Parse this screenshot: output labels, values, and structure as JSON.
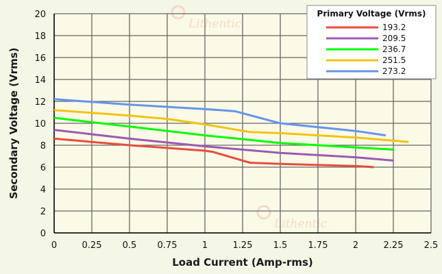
{
  "chart_data": {
    "type": "line",
    "title": "",
    "xlabel": "Load Current (Amp-rms)",
    "ylabel": "Secondary Voltage (Vrms)",
    "xlim": [
      0,
      2.5
    ],
    "ylim": [
      0,
      20
    ],
    "xticks": [
      "0",
      "0.25",
      "0.5",
      "0.75",
      "1",
      "1.25",
      "1.5",
      "1.75",
      "2",
      "2.25",
      "2.5"
    ],
    "yticks": [
      "0",
      "2",
      "4",
      "6",
      "8",
      "10",
      "12",
      "14",
      "16",
      "18",
      "20"
    ],
    "grid": true,
    "legend": {
      "title": "Primary Voltage (Vrms)",
      "placement": "top-right"
    },
    "watermark": "Lithentic",
    "series": [
      {
        "name": "193.2",
        "color": "#e84c3d",
        "x": [
          0,
          0.5,
          1.0,
          1.05,
          1.3,
          1.5,
          2.0,
          2.12
        ],
        "y": [
          8.6,
          8.0,
          7.5,
          7.4,
          6.4,
          6.3,
          6.1,
          6.0
        ]
      },
      {
        "name": "209.5",
        "color": "#9b59b6",
        "x": [
          0,
          0.5,
          1.0,
          1.5,
          2.0,
          2.25
        ],
        "y": [
          9.4,
          8.6,
          7.9,
          7.3,
          6.9,
          6.6
        ]
      },
      {
        "name": "236.7",
        "color": "#00ff00",
        "x": [
          0,
          0.5,
          1.0,
          1.5,
          2.0,
          2.25
        ],
        "y": [
          10.5,
          9.7,
          8.9,
          8.2,
          7.8,
          7.6
        ]
      },
      {
        "name": "251.5",
        "color": "#f1c40f",
        "x": [
          0,
          0.5,
          0.75,
          1.0,
          1.3,
          1.5,
          2.0,
          2.35
        ],
        "y": [
          11.2,
          10.7,
          10.4,
          9.9,
          9.2,
          9.1,
          8.7,
          8.3
        ]
      },
      {
        "name": "273.2",
        "color": "#6495ed",
        "x": [
          0,
          0.5,
          1.0,
          1.2,
          1.5,
          2.0,
          2.2
        ],
        "y": [
          12.2,
          11.7,
          11.3,
          11.1,
          10.0,
          9.3,
          8.9
        ]
      }
    ]
  }
}
